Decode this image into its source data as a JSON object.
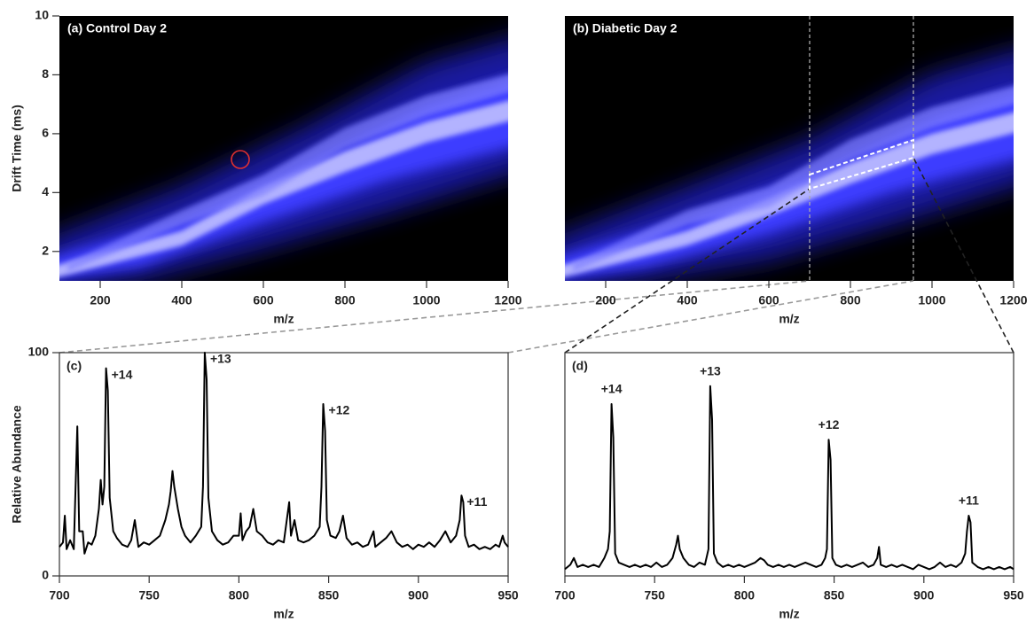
{
  "chart_data": [
    {
      "type": "heatmap",
      "title": "(a) Control Day 2",
      "xlabel": "m/z",
      "ylabel": "Drift Time (ms)",
      "xlim": [
        100,
        1200
      ],
      "xticks": [
        200,
        400,
        600,
        800,
        1000,
        1200
      ],
      "ylim": [
        1,
        10
      ],
      "yticks": [
        2,
        4,
        6,
        8,
        10
      ]
    },
    {
      "type": "heatmap",
      "title": "(b) Diabetic Day 2",
      "xlabel": "m/z",
      "xlim": [
        100,
        1200
      ],
      "xticks": [
        200,
        400,
        600,
        800,
        1000,
        1200
      ],
      "ylim": [
        1,
        10
      ]
    },
    {
      "type": "line",
      "title": "(c)",
      "xlabel": "m/z",
      "ylabel": "Relative Abundance",
      "color": "#000000",
      "xlim": [
        700,
        950
      ],
      "xticks": [
        700,
        750,
        800,
        850,
        900,
        950
      ],
      "ylim": [
        0,
        100
      ],
      "yticks": [
        0,
        100
      ],
      "x": [
        700,
        702,
        703,
        704,
        706,
        708,
        710,
        711,
        713,
        714,
        716,
        718,
        720,
        722,
        723,
        724,
        725,
        726,
        727,
        728,
        730,
        732,
        735,
        738,
        740,
        742,
        744,
        747,
        750,
        753,
        756,
        759,
        761,
        762,
        763,
        764,
        766,
        768,
        770,
        773,
        776,
        779,
        780,
        781,
        782,
        783,
        785,
        788,
        791,
        794,
        797,
        800,
        801,
        802,
        804,
        806,
        808,
        810,
        813,
        816,
        819,
        822,
        825,
        828,
        829,
        831,
        833,
        836,
        839,
        842,
        845,
        846,
        847,
        848,
        849,
        851,
        854,
        856,
        858,
        860,
        863,
        866,
        869,
        872,
        875,
        876,
        879,
        882,
        885,
        888,
        891,
        894,
        897,
        900,
        903,
        906,
        909,
        912,
        915,
        918,
        921,
        923,
        924,
        925,
        926,
        928,
        931,
        934,
        937,
        940,
        943,
        945,
        947,
        948,
        950
      ],
      "values": [
        13,
        15,
        27,
        12,
        16,
        12,
        67,
        20,
        20,
        10,
        15,
        14,
        18,
        30,
        43,
        32,
        40,
        93,
        83,
        35,
        20,
        17,
        14,
        13,
        16,
        25,
        13,
        15,
        14,
        16,
        18,
        25,
        32,
        38,
        47,
        40,
        30,
        22,
        18,
        15,
        18,
        22,
        40,
        100,
        88,
        35,
        20,
        16,
        14,
        15,
        18,
        18,
        28,
        16,
        20,
        22,
        30,
        20,
        18,
        15,
        14,
        16,
        15,
        33,
        18,
        25,
        16,
        15,
        16,
        18,
        22,
        40,
        77,
        65,
        25,
        18,
        17,
        20,
        27,
        17,
        14,
        15,
        13,
        14,
        20,
        13,
        15,
        17,
        20,
        15,
        13,
        14,
        12,
        14,
        13,
        15,
        13,
        16,
        20,
        15,
        18,
        25,
        36,
        33,
        18,
        13,
        14,
        12,
        13,
        12,
        14,
        13,
        18,
        15,
        13
      ],
      "annotations": [
        {
          "text": "+14",
          "x": 726,
          "y": 93
        },
        {
          "text": "+13",
          "x": 781,
          "y": 100
        },
        {
          "text": "+12",
          "x": 847,
          "y": 77
        },
        {
          "text": "+11",
          "x": 924,
          "y": 36
        }
      ]
    },
    {
      "type": "line",
      "title": "(d)",
      "xlabel": "m/z",
      "color": "#000000",
      "xlim": [
        700,
        950
      ],
      "xticks": [
        700,
        750,
        800,
        850,
        900,
        950
      ],
      "ylim": [
        0,
        100
      ],
      "x": [
        700,
        703,
        705,
        707,
        710,
        713,
        716,
        719,
        722,
        724,
        725,
        726,
        727,
        728,
        730,
        733,
        736,
        739,
        742,
        745,
        748,
        751,
        754,
        757,
        760,
        762,
        763,
        764,
        766,
        769,
        772,
        775,
        778,
        780,
        781,
        782,
        783,
        785,
        788,
        791,
        794,
        797,
        800,
        803,
        806,
        809,
        811,
        813,
        816,
        819,
        822,
        825,
        828,
        831,
        834,
        837,
        840,
        843,
        845,
        846,
        847,
        848,
        849,
        851,
        854,
        857,
        860,
        863,
        866,
        869,
        872,
        874,
        875,
        876,
        879,
        882,
        885,
        888,
        891,
        894,
        897,
        900,
        903,
        906,
        909,
        912,
        915,
        918,
        921,
        923,
        924,
        925,
        926,
        927,
        930,
        933,
        936,
        939,
        942,
        945,
        948,
        950
      ],
      "values": [
        3,
        5,
        8,
        4,
        5,
        4,
        5,
        4,
        8,
        12,
        20,
        77,
        62,
        10,
        6,
        5,
        4,
        5,
        4,
        5,
        4,
        6,
        4,
        5,
        8,
        14,
        18,
        12,
        8,
        5,
        4,
        6,
        5,
        12,
        85,
        70,
        10,
        6,
        4,
        5,
        4,
        5,
        4,
        5,
        6,
        8,
        7,
        5,
        4,
        5,
        4,
        5,
        4,
        5,
        6,
        5,
        4,
        5,
        8,
        12,
        61,
        52,
        8,
        5,
        4,
        5,
        4,
        5,
        6,
        4,
        5,
        8,
        13,
        5,
        4,
        5,
        4,
        5,
        4,
        3,
        5,
        4,
        3,
        4,
        6,
        4,
        5,
        4,
        6,
        10,
        20,
        27,
        24,
        6,
        4,
        3,
        4,
        3,
        4,
        3,
        4,
        3
      ],
      "annotations": [
        {
          "text": "+14",
          "x": 726,
          "y": 77
        },
        {
          "text": "+13",
          "x": 781,
          "y": 85
        },
        {
          "text": "+12",
          "x": 847,
          "y": 61
        },
        {
          "text": "+11",
          "x": 925,
          "y": 27
        }
      ]
    }
  ]
}
